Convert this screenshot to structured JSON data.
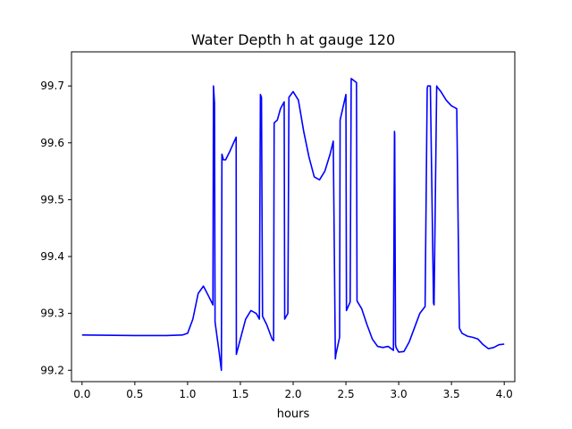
{
  "chart_data": {
    "type": "line",
    "title": "Water Depth h at gauge 120",
    "xlabel": "hours",
    "ylabel": "",
    "xlim": [
      -0.1,
      4.1
    ],
    "ylim": [
      99.18,
      99.76
    ],
    "xticks": [
      0.0,
      0.5,
      1.0,
      1.5,
      2.0,
      2.5,
      3.0,
      3.5,
      4.0
    ],
    "xtick_labels": [
      "0.0",
      "0.5",
      "1.0",
      "1.5",
      "2.0",
      "2.5",
      "3.0",
      "3.5",
      "4.0"
    ],
    "yticks": [
      99.2,
      99.3,
      99.4,
      99.5,
      99.6,
      99.7
    ],
    "ytick_labels": [
      "99.2",
      "99.3",
      "99.4",
      "99.5",
      "99.6",
      "99.7"
    ],
    "grid": false,
    "series": [
      {
        "color": "#0000ff",
        "x": [
          0.0,
          0.5,
          0.8,
          0.95,
          1.0,
          1.05,
          1.1,
          1.15,
          1.2,
          1.24,
          1.245,
          1.255,
          1.26,
          1.3,
          1.32,
          1.325,
          1.34,
          1.36,
          1.4,
          1.46,
          1.462,
          1.5,
          1.55,
          1.6,
          1.65,
          1.68,
          1.69,
          1.7,
          1.71,
          1.75,
          1.8,
          1.815,
          1.82,
          1.85,
          1.88,
          1.915,
          1.92,
          1.95,
          1.96,
          2.0,
          2.05,
          2.1,
          2.15,
          2.2,
          2.25,
          2.3,
          2.35,
          2.38,
          2.4,
          2.405,
          2.44,
          2.445,
          2.5,
          2.505,
          2.54,
          2.55,
          2.6,
          2.605,
          2.65,
          2.7,
          2.75,
          2.8,
          2.85,
          2.9,
          2.95,
          2.96,
          2.962,
          2.97,
          2.975,
          3.0,
          3.05,
          3.1,
          3.15,
          3.2,
          3.25,
          3.27,
          3.275,
          3.3,
          3.33,
          3.335,
          3.36,
          3.365,
          3.4,
          3.45,
          3.5,
          3.55,
          3.575,
          3.58,
          3.6,
          3.65,
          3.7,
          3.75,
          3.8,
          3.85,
          3.9,
          3.95,
          4.0
        ],
        "y": [
          99.262,
          99.261,
          99.261,
          99.262,
          99.265,
          99.29,
          99.335,
          99.348,
          99.33,
          99.315,
          99.7,
          99.67,
          99.285,
          99.23,
          99.2,
          99.58,
          99.57,
          99.57,
          99.585,
          99.61,
          99.228,
          99.255,
          99.29,
          99.305,
          99.3,
          99.29,
          99.685,
          99.68,
          99.295,
          99.28,
          99.255,
          99.252,
          99.635,
          99.64,
          99.66,
          99.672,
          99.29,
          99.3,
          99.68,
          99.69,
          99.675,
          99.62,
          99.575,
          99.54,
          99.535,
          99.55,
          99.58,
          99.603,
          99.22,
          99.228,
          99.258,
          99.64,
          99.685,
          99.305,
          99.32,
          99.713,
          99.706,
          99.322,
          99.308,
          99.28,
          99.255,
          99.242,
          99.24,
          99.242,
          99.235,
          99.62,
          99.615,
          99.245,
          99.24,
          99.232,
          99.233,
          99.25,
          99.275,
          99.3,
          99.312,
          99.695,
          99.7,
          99.7,
          99.318,
          99.315,
          99.7,
          99.698,
          99.69,
          99.675,
          99.665,
          99.66,
          99.275,
          99.272,
          99.265,
          99.26,
          99.258,
          99.255,
          99.245,
          99.238,
          99.24,
          99.245,
          99.246
        ]
      }
    ]
  }
}
